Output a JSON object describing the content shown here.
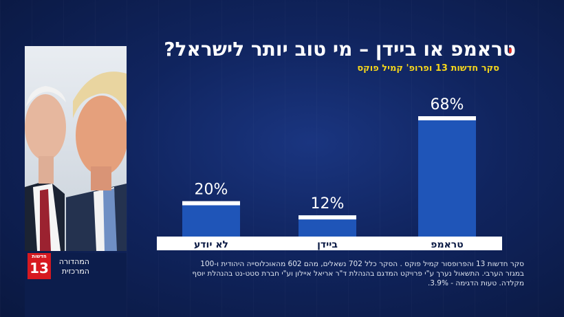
{
  "header": {
    "title": "טראמפ או ביידן – מי טוב יותר לישראל?",
    "subtitle": "סקר חדשות 13 ופרופ' קמיל פוקס"
  },
  "branding": {
    "logo_top": "חדשות",
    "logo_number": "13",
    "show_name": "המהדורה המרכזית"
  },
  "colors": {
    "accent_red": "#e2231a",
    "subtitle_yellow": "#f4d51c",
    "bar_blue": "#1f55b8"
  },
  "footer": {
    "note": "סקר חדשות 13 והפרופסור קמיל פוקס . הסקר כלל 702 נשאלים, מהם 602 מהאוכלוסייה היהודית ו-100 במגזר הערבי. התשאול נערך ע\"י פרויקט המדגם בהנהלת ד\"ר אריאל איילון וע\"י חברת סטט-נט בהנהלת יוסף מקלדה. טעות הדגימה - 3.9%."
  },
  "chart_data": {
    "type": "bar",
    "categories": [
      "לא יודע",
      "ביידן",
      "טראמפ"
    ],
    "values": [
      20,
      12,
      68
    ],
    "value_labels": [
      "20%",
      "12%",
      "68%"
    ],
    "ylim": [
      0,
      68
    ],
    "grid": false
  }
}
